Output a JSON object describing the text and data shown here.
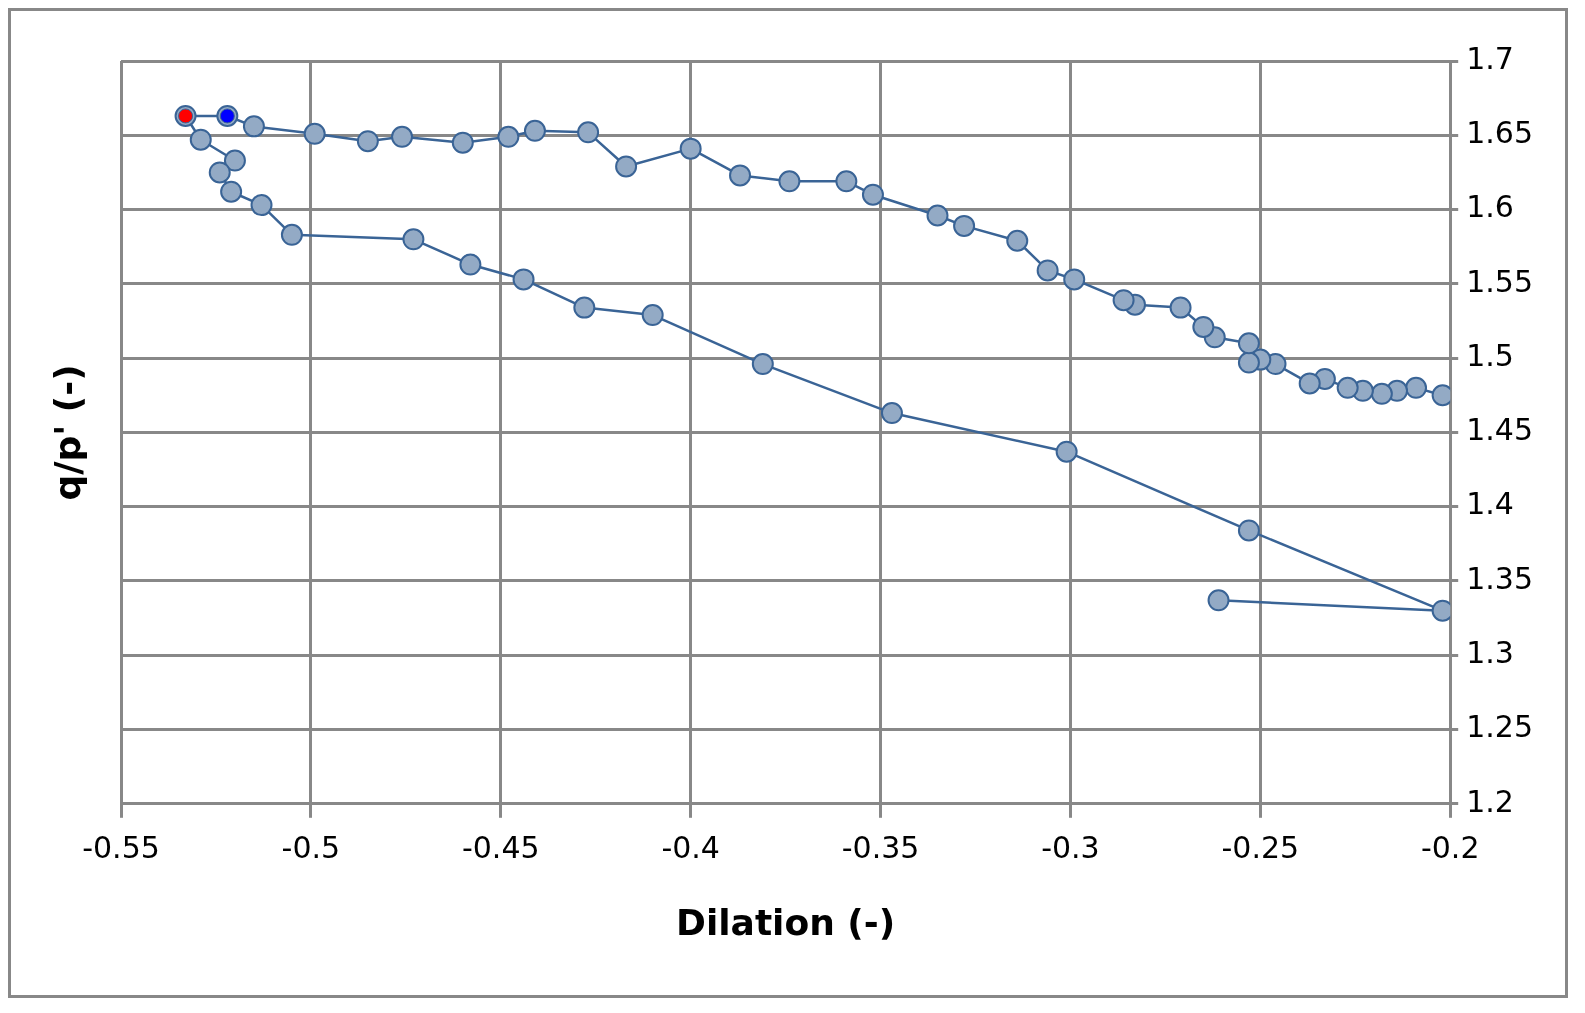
{
  "chart_data": {
    "type": "line",
    "xlabel": "Dilation (-)",
    "ylabel": "q/p' (-)",
    "xlim": [
      -0.55,
      -0.2
    ],
    "xticks": [
      -0.55,
      -0.5,
      -0.45,
      -0.4,
      -0.35,
      -0.3,
      -0.25,
      -0.2
    ],
    "ylim": [
      1.2,
      1.7
    ],
    "yticks": [
      1.2,
      1.25,
      1.3,
      1.35,
      1.4,
      1.45,
      1.5,
      1.55,
      1.6,
      1.65,
      1.7
    ],
    "grid": true,
    "legend": false,
    "marker": "circle",
    "line_style": "solid",
    "series": [
      {
        "type": "line",
        "color": "#3a6496",
        "x": [
          -0.202,
          -0.209,
          -0.214,
          -0.218,
          -0.223,
          -0.227,
          -0.233,
          -0.237,
          -0.246,
          -0.25,
          -0.253,
          -0.253,
          -0.262,
          -0.265,
          -0.271,
          -0.283,
          -0.286,
          -0.299,
          -0.306,
          -0.314,
          -0.328,
          -0.335,
          -0.352,
          -0.359,
          -0.374,
          -0.387,
          -0.4,
          -0.417,
          -0.427,
          -0.441,
          -0.448,
          -0.46,
          -0.476,
          -0.485,
          -0.499,
          -0.515,
          -0.522,
          -0.533,
          -0.529,
          -0.52,
          -0.524,
          -0.521,
          -0.513,
          -0.505,
          -0.473,
          -0.458,
          -0.444,
          -0.428,
          -0.41,
          -0.381,
          -0.347,
          -0.301,
          -0.253,
          -0.202,
          -0.261
        ],
        "values": [
          1.475,
          1.48,
          1.478,
          1.476,
          1.478,
          1.48,
          1.486,
          1.483,
          1.496,
          1.499,
          1.497,
          1.51,
          1.514,
          1.521,
          1.534,
          1.536,
          1.539,
          1.553,
          1.559,
          1.579,
          1.589,
          1.596,
          1.61,
          1.619,
          1.619,
          1.623,
          1.641,
          1.629,
          1.652,
          1.653,
          1.649,
          1.645,
          1.649,
          1.646,
          1.651,
          1.656,
          1.663,
          1.663,
          1.647,
          1.633,
          1.625,
          1.612,
          1.603,
          1.583,
          1.58,
          1.563,
          1.553,
          1.534,
          1.529,
          1.496,
          1.463,
          1.437,
          1.384,
          1.33,
          1.337
        ]
      },
      {
        "type": "scatter",
        "color": "#ff0000",
        "x": [
          -0.533
        ],
        "values": [
          1.663
        ]
      },
      {
        "type": "scatter",
        "color": "#0000ff",
        "x": [
          -0.522
        ],
        "values": [
          1.663
        ]
      }
    ]
  }
}
